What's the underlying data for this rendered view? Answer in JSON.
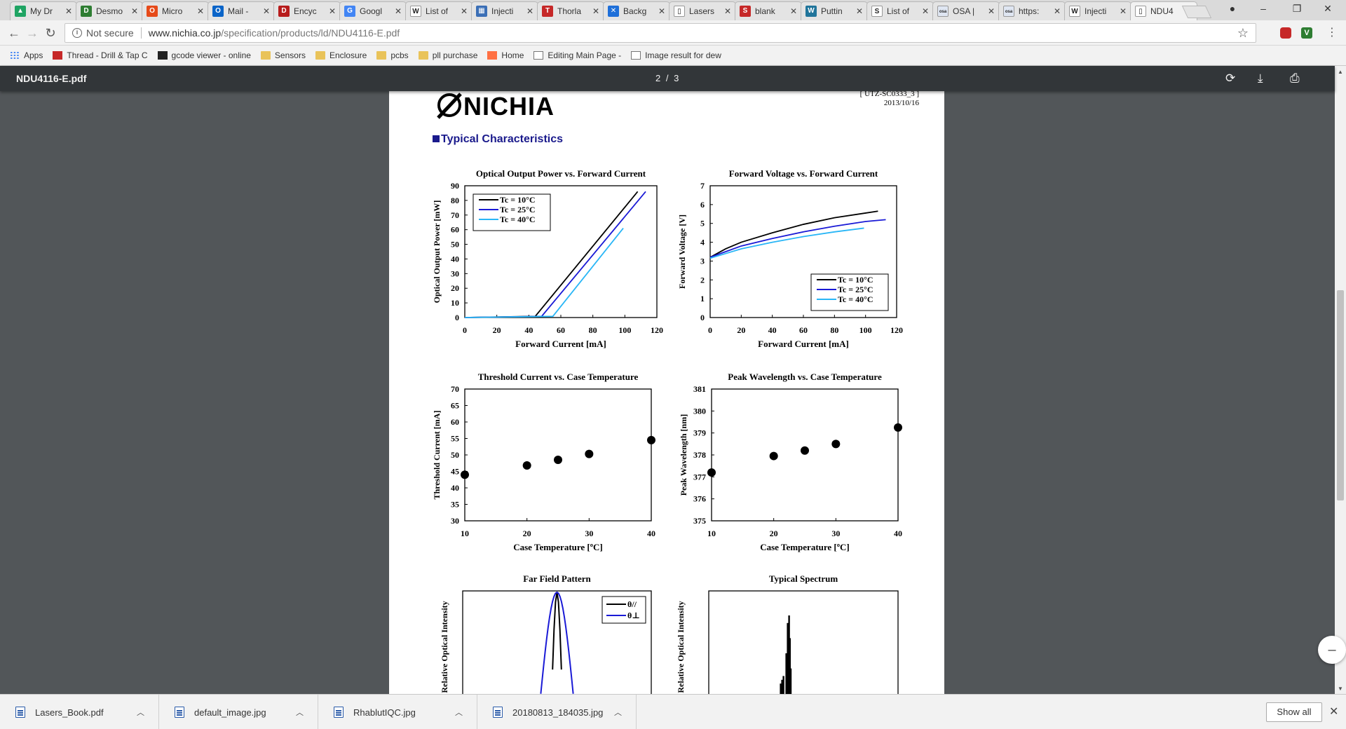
{
  "tabs": [
    {
      "label": "My Dr",
      "icon": "google-drive-icon",
      "color": "#1fa463",
      "glyph": "▲"
    },
    {
      "label": "Desmo",
      "icon": "desmos-icon",
      "color": "#2e7d32",
      "glyph": "D"
    },
    {
      "label": "Micro",
      "icon": "office-icon",
      "color": "#e64a19",
      "glyph": "O"
    },
    {
      "label": "Mail -",
      "icon": "outlook-icon",
      "color": "#0a64c8",
      "glyph": "O"
    },
    {
      "label": "Encyc",
      "icon": "encyclopedia-icon",
      "color": "#b71c1c",
      "glyph": "D"
    },
    {
      "label": "Googl",
      "icon": "google-icon",
      "color": "#4285f4",
      "glyph": "G"
    },
    {
      "label": "List of",
      "icon": "wikipedia-icon",
      "color": "#ffffff",
      "glyph": "W"
    },
    {
      "label": "Injecti",
      "icon": "site-icon",
      "color": "#3b6fb6",
      "glyph": "▦"
    },
    {
      "label": "Thorla",
      "icon": "thorlabs-icon",
      "color": "#c62828",
      "glyph": "T"
    },
    {
      "label": "Backg",
      "icon": "bird-icon",
      "color": "#1e6fd9",
      "glyph": "✕"
    },
    {
      "label": "Lasers",
      "icon": "document-icon",
      "color": "#ffffff",
      "glyph": "▯"
    },
    {
      "label": "blank",
      "icon": "scribd-icon",
      "color": "#c62828",
      "glyph": "S"
    },
    {
      "label": "Puttin",
      "icon": "wordpress-icon",
      "color": "#21759b",
      "glyph": "W"
    },
    {
      "label": "List of",
      "icon": "stackexchange-icon",
      "color": "#ffffff",
      "glyph": "S"
    },
    {
      "label": "OSA |",
      "icon": "osa-icon",
      "color": "#dfe6f2",
      "glyph": "osa"
    },
    {
      "label": "https:",
      "icon": "osa-icon",
      "color": "#dfe6f2",
      "glyph": "osa"
    },
    {
      "label": "Injecti",
      "icon": "wikipedia-icon",
      "color": "#ffffff",
      "glyph": "W"
    },
    {
      "label": "NDU4",
      "icon": "document-icon",
      "color": "#ffffff",
      "glyph": "▯"
    }
  ],
  "address": {
    "security": "Not secure",
    "url_host": "www.nichia.co.jp",
    "url_path": "/specification/products/ld/NDU4116-E.pdf"
  },
  "bookmarks": [
    {
      "label": "Apps",
      "icon": "apps-icon"
    },
    {
      "label": "Thread - Drill & Tap C",
      "icon": "bookmark-red-icon"
    },
    {
      "label": "gcode viewer - online",
      "icon": "gcode-icon"
    },
    {
      "label": "Sensors",
      "icon": "folder-icon"
    },
    {
      "label": "Enclosure",
      "icon": "folder-icon"
    },
    {
      "label": "pcbs",
      "icon": "folder-icon"
    },
    {
      "label": "pll purchase",
      "icon": "folder-icon"
    },
    {
      "label": "Home",
      "icon": "home-site-icon"
    },
    {
      "label": "Editing Main Page - ",
      "icon": "page-icon"
    },
    {
      "label": "Image result for dew",
      "icon": "wikipedia-icon"
    }
  ],
  "pdf": {
    "title": "NDU4116-E.pdf",
    "page_indicator": "2 / 3",
    "brand": "NICHIA",
    "doc_number": "[ UTZ-SC0333_3 ]",
    "doc_date": "2013/10/16",
    "section_title": "Typical Characteristics"
  },
  "chart_data": [
    {
      "type": "line",
      "title": "Optical Output Power vs. Forward Current",
      "xlabel": "Forward Current [mA]",
      "ylabel": "Optical Output Power [mW]",
      "xlim": [
        0,
        120
      ],
      "ylim": [
        0,
        90
      ],
      "xticks": [
        0,
        20,
        40,
        60,
        80,
        100,
        120
      ],
      "yticks": [
        0,
        10,
        20,
        30,
        40,
        50,
        60,
        70,
        80,
        90
      ],
      "legend": "top-left",
      "series": [
        {
          "name": "Tc = 10°C",
          "color": "#000000",
          "x": [
            0,
            44,
            108
          ],
          "y": [
            0,
            0.8,
            86
          ]
        },
        {
          "name": "Tc = 25°C",
          "color": "#1a1ad6",
          "x": [
            0,
            48,
            113
          ],
          "y": [
            0,
            0.8,
            86
          ]
        },
        {
          "name": "Tc = 40°C",
          "color": "#29b6f6",
          "x": [
            0,
            55,
            99
          ],
          "y": [
            0,
            0.8,
            61
          ]
        }
      ]
    },
    {
      "type": "line",
      "title": "Forward Voltage vs. Forward Current",
      "xlabel": "Forward Current [mA]",
      "ylabel": "Forward Voltage [V]",
      "xlim": [
        0,
        120
      ],
      "ylim": [
        0,
        7
      ],
      "xticks": [
        0,
        20,
        40,
        60,
        80,
        100,
        120
      ],
      "yticks": [
        0,
        1,
        2,
        3,
        4,
        5,
        6,
        7
      ],
      "legend": "bottom-right",
      "series": [
        {
          "name": "Tc = 10°C",
          "color": "#000000",
          "x": [
            0,
            10,
            20,
            40,
            60,
            80,
            100,
            108
          ],
          "y": [
            3.2,
            3.65,
            4.0,
            4.5,
            4.95,
            5.3,
            5.55,
            5.65
          ]
        },
        {
          "name": "Tc = 25°C",
          "color": "#1a1ad6",
          "x": [
            0,
            10,
            20,
            40,
            60,
            80,
            100,
            113
          ],
          "y": [
            3.2,
            3.5,
            3.8,
            4.2,
            4.55,
            4.85,
            5.1,
            5.2
          ]
        },
        {
          "name": "Tc = 40°C",
          "color": "#29b6f6",
          "x": [
            0,
            10,
            20,
            40,
            60,
            80,
            99
          ],
          "y": [
            3.15,
            3.4,
            3.65,
            4.0,
            4.3,
            4.55,
            4.75
          ]
        }
      ]
    },
    {
      "type": "scatter",
      "title": "Threshold Current vs. Case Temperature",
      "xlabel": "Case Temperature [ºC]",
      "ylabel": "Threshold Current [mA]",
      "xlim": [
        10,
        40
      ],
      "ylim": [
        30,
        70
      ],
      "xticks": [
        10,
        20,
        30,
        40
      ],
      "yticks": [
        30,
        35,
        40,
        45,
        50,
        55,
        60,
        65,
        70
      ],
      "series": [
        {
          "color": "#000000",
          "x": [
            10,
            20,
            25,
            30,
            40
          ],
          "y": [
            44,
            46.8,
            48.5,
            50.3,
            54.5
          ]
        }
      ]
    },
    {
      "type": "scatter",
      "title": "Peak Wavelength vs. Case Temperature",
      "xlabel": "Case Temperature [ºC]",
      "ylabel": "Peak Wavelength [nm]",
      "xlim": [
        10,
        40
      ],
      "ylim": [
        375,
        381
      ],
      "xticks": [
        10,
        20,
        30,
        40
      ],
      "yticks": [
        375,
        376,
        377,
        378,
        379,
        380,
        381
      ],
      "series": [
        {
          "color": "#000000",
          "x": [
            10,
            20,
            25,
            30,
            40
          ],
          "y": [
            377.2,
            377.95,
            378.2,
            378.5,
            379.25
          ]
        }
      ]
    },
    {
      "type": "line",
      "title": "Far Field Pattern",
      "ylabel": "Relative Optical Intensity",
      "legend": "top-right",
      "series": [
        {
          "name": "θ//",
          "color": "#000000",
          "width": 4.5,
          "center": 0
        },
        {
          "name": "θ⊥",
          "color": "#1a1ad6",
          "width": 14,
          "center": 0
        }
      ]
    },
    {
      "type": "bar",
      "title": "Typical Spectrum",
      "ylabel": "Relative Optical Intensity",
      "series": [
        {
          "color": "#000000",
          "x": [
            -3,
            -2.5,
            -2,
            -1,
            -0.5,
            0,
            0.3,
            0.6
          ],
          "y": [
            0.1,
            0.15,
            0.2,
            0.5,
            0.9,
            1.0,
            0.7,
            0.3
          ]
        }
      ]
    }
  ],
  "downloads": [
    {
      "name": "Lasers_Book.pdf"
    },
    {
      "name": "default_image.jpg"
    },
    {
      "name": "RhablutIQC.jpg"
    },
    {
      "name": "20180813_184035.jpg"
    }
  ],
  "downloads_show_all": "Show all"
}
